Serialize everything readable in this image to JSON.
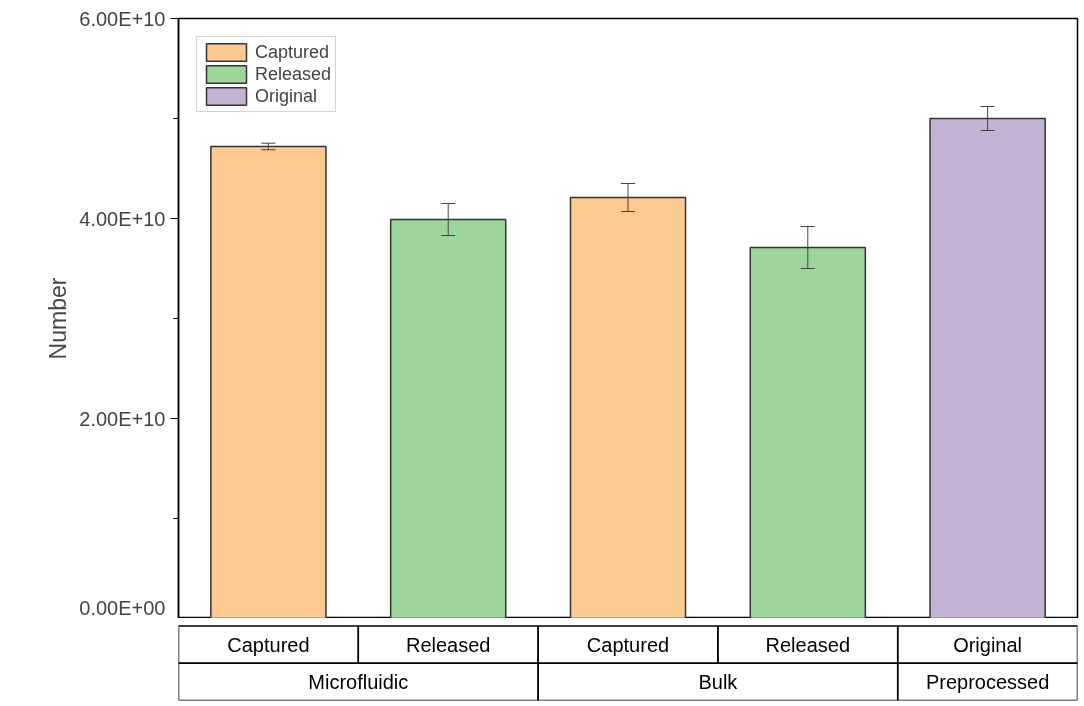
{
  "chart_data": {
    "type": "bar",
    "ylabel": "Number",
    "categories": [
      "Captured",
      "Released",
      "Captured",
      "Released",
      "Original"
    ],
    "annotations": [
      "Microfluidic",
      "Bulk",
      "Preprocessed"
    ],
    "series": [
      {
        "name": "Captured",
        "color": "#fdcb92",
        "values": [
          47200000000.0,
          null,
          42100000000.0,
          null,
          null
        ],
        "errors": [
          330000000.0,
          null,
          1400000000.0,
          null,
          null
        ]
      },
      {
        "name": "Released",
        "color": "#9dd59b",
        "values": [
          null,
          39900000000.0,
          null,
          37100000000.0,
          null
        ],
        "errors": [
          null,
          1600000000.0,
          null,
          2100000000.0,
          null
        ]
      },
      {
        "name": "Original",
        "color": "#c5b3d6",
        "values": [
          null,
          null,
          null,
          null,
          50000000000.0
        ],
        "errors": [
          null,
          null,
          null,
          null,
          1200000000.0
        ]
      }
    ],
    "ylim": [
      0,
      60000000000.0
    ],
    "yticks": [
      {
        "value": 0,
        "label": "0.00E+00"
      },
      {
        "value": 10000000000.0,
        "label": null
      },
      {
        "value": 20000000000.0,
        "label": "2.00E+10"
      },
      {
        "value": 30000000000.0,
        "label": null
      },
      {
        "value": 40000000000.0,
        "label": "4.00E+10"
      },
      {
        "value": 50000000000.0,
        "label": null
      },
      {
        "value": 60000000000.0,
        "label": "6.00E+10"
      }
    ],
    "grid": false,
    "legend": "top left"
  }
}
